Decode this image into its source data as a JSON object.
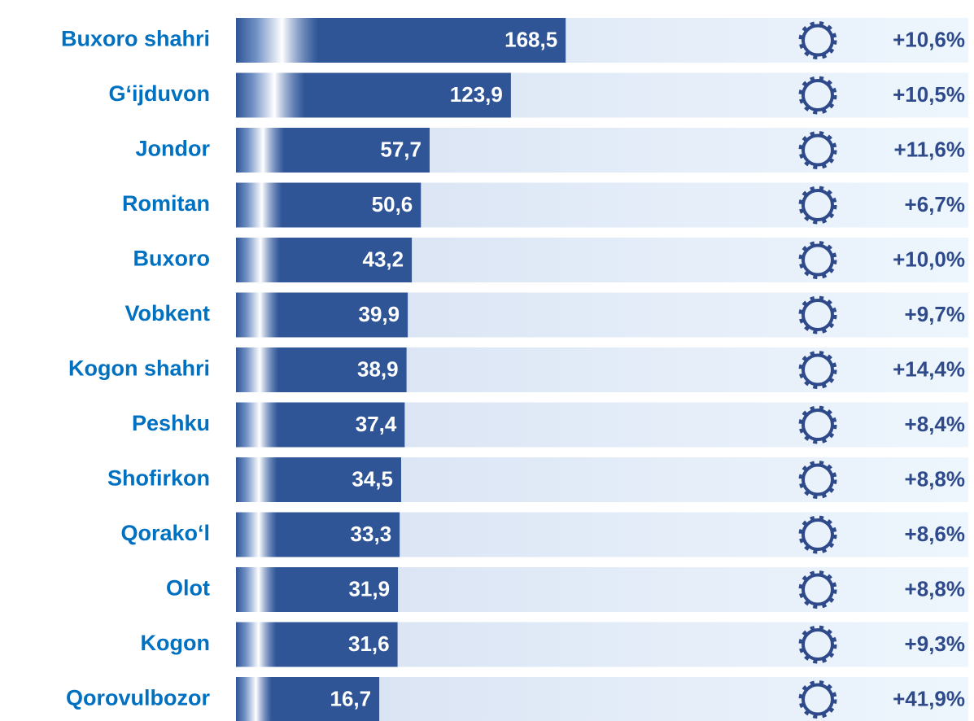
{
  "chart_data": {
    "type": "bar",
    "orientation": "horizontal",
    "categories": [
      "Buxoro shahri",
      "G‘ijduvon",
      "Jondor",
      "Romitan",
      "Buxoro",
      "Vobkent",
      "Kogon shahri",
      "Peshku",
      "Shofirkon",
      "Qorako‘l",
      "Olot",
      "Kogon",
      "Qorovulbozor"
    ],
    "values": [
      168.5,
      123.9,
      57.7,
      50.6,
      43.2,
      39.9,
      38.9,
      37.4,
      34.5,
      33.3,
      31.9,
      31.6,
      16.7
    ],
    "value_labels": [
      "168,5",
      "123,9",
      "57,7",
      "50,6",
      "43,2",
      "39,9",
      "38,9",
      "37,4",
      "34,5",
      "33,3",
      "31,9",
      "31,6",
      "16,7"
    ],
    "color": "#2f5597",
    "xlim": [
      -100,
      175
    ],
    "growth": {
      "values": [
        10.6,
        10.5,
        11.6,
        6.7,
        10.0,
        9.7,
        14.4,
        8.4,
        8.8,
        8.6,
        8.8,
        9.3,
        41.9
      ],
      "value_labels": [
        "+10,6%",
        "+10,5%",
        "+11,6%",
        "+6,7%",
        "+10,0%",
        "+9,7%",
        "+14,4%",
        "+8,4%",
        "+8,8%",
        "+8,6%",
        "+8,8%",
        "+9,3%",
        "+41,9%"
      ],
      "color": "#2f4a8a"
    }
  }
}
